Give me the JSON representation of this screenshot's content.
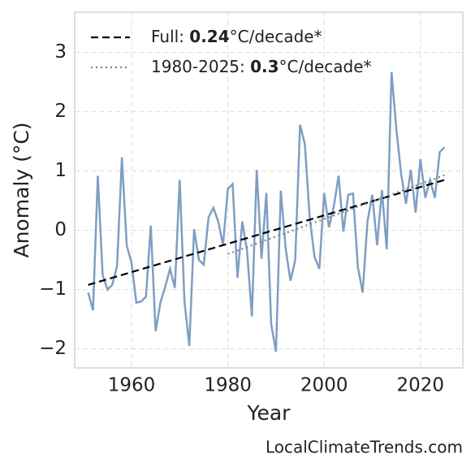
{
  "chart_data": {
    "type": "line",
    "xlabel": "Year",
    "ylabel": "Anomaly (°C)",
    "source": "LocalClimateTrends.com",
    "xlim": [
      1948.2,
      2028.8
    ],
    "ylim": [
      -2.32,
      3.68
    ],
    "xticks": [
      1960,
      1980,
      2000,
      2020
    ],
    "yticks": [
      {
        "value": -2,
        "label": "−2"
      },
      {
        "value": -1,
        "label": "−1"
      },
      0,
      1,
      2,
      3
    ],
    "grid": true,
    "legend": "upper left",
    "series": [
      {
        "color": "#7f9ec2",
        "x": [
          1951,
          1952,
          1953,
          1954,
          1955,
          1956,
          1957,
          1958,
          1959,
          1960,
          1961,
          1962,
          1963,
          1964,
          1965,
          1966,
          1967,
          1968,
          1969,
          1970,
          1971,
          1972,
          1973,
          1974,
          1975,
          1976,
          1977,
          1978,
          1979,
          1980,
          1981,
          1982,
          1983,
          1984,
          1985,
          1986,
          1987,
          1988,
          1989,
          1990,
          1991,
          1992,
          1993,
          1994,
          1995,
          1996,
          1997,
          1998,
          1999,
          2000,
          2001,
          2002,
          2003,
          2004,
          2005,
          2006,
          2007,
          2008,
          2009,
          2010,
          2011,
          2012,
          2013,
          2014,
          2015,
          2016,
          2017,
          2018,
          2019,
          2020,
          2021,
          2022,
          2023,
          2024,
          2025
        ],
        "values": [
          -1.05,
          -1.35,
          0.92,
          -0.75,
          -1.0,
          -0.92,
          -0.6,
          1.23,
          -0.25,
          -0.55,
          -1.22,
          -1.2,
          -1.12,
          0.08,
          -1.7,
          -1.22,
          -0.95,
          -0.65,
          -0.97,
          0.85,
          -1.2,
          -1.95,
          0.02,
          -0.5,
          -0.58,
          0.22,
          0.38,
          0.15,
          -0.25,
          0.7,
          0.78,
          -0.8,
          0.15,
          -0.35,
          -1.45,
          1.02,
          -0.48,
          0.63,
          -1.58,
          -2.05,
          0.67,
          -0.3,
          -0.85,
          -0.5,
          1.78,
          1.45,
          0.22,
          -0.45,
          -0.65,
          0.63,
          0.05,
          0.4,
          0.92,
          -0.02,
          0.6,
          0.62,
          -0.62,
          -1.05,
          0.15,
          0.6,
          -0.25,
          0.68,
          -0.32,
          2.67,
          1.7,
          0.95,
          0.45,
          1.02,
          0.3,
          1.2,
          0.55,
          0.85,
          0.55,
          1.32,
          1.4
        ]
      },
      {
        "name": [
          "Full: ",
          "0.24",
          "°C/decade*"
        ],
        "color": "#000000",
        "dash": "dashed",
        "x": [
          1951,
          2025
        ],
        "values": [
          -0.92,
          0.85
        ]
      },
      {
        "name": [
          "1980-2025: ",
          "0.3",
          "°C/decade*"
        ],
        "color": "#808080",
        "dash": "dotted",
        "x": [
          1980,
          2025
        ],
        "values": [
          -0.4,
          0.93
        ]
      }
    ]
  }
}
